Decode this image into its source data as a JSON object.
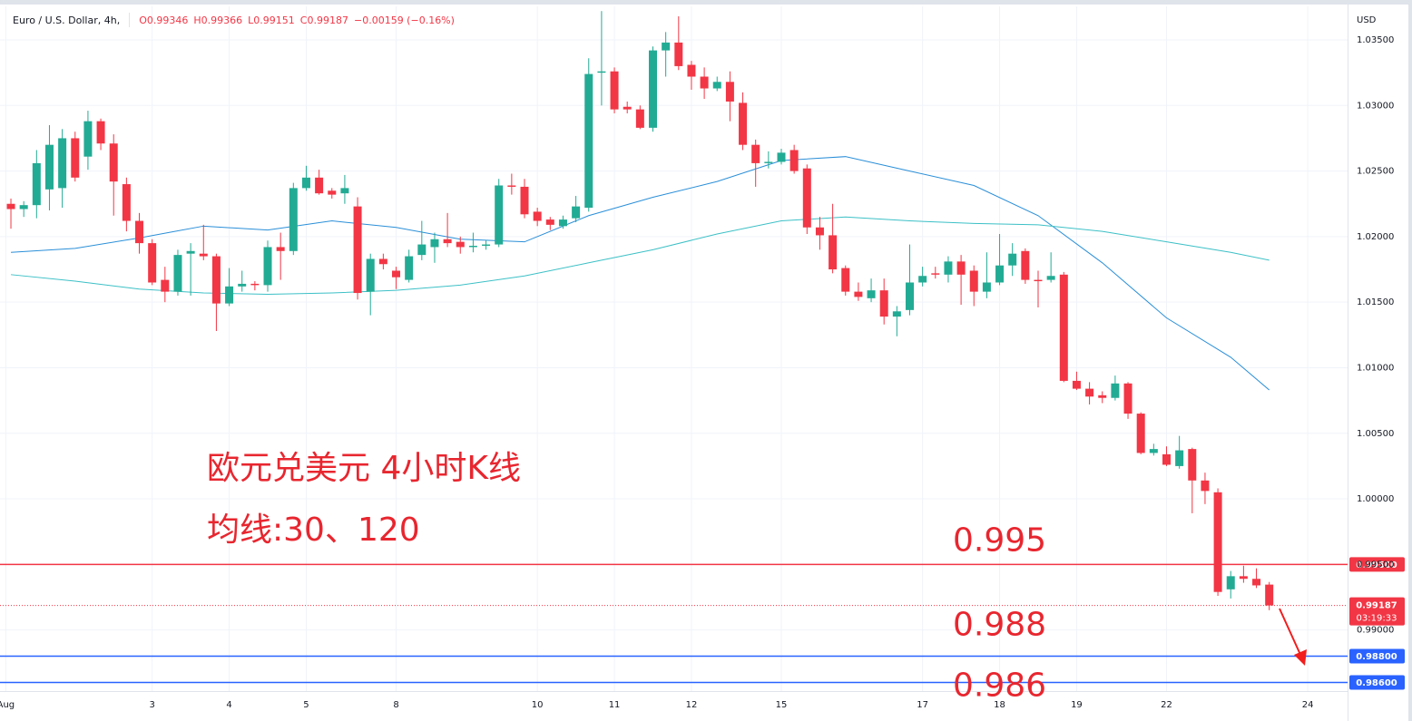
{
  "chart_data": {
    "type": "candlestick",
    "title": "Euro / U.S. Dollar, 4h,",
    "header_values": [
      {
        "key": "O",
        "value": "0.99346"
      },
      {
        "key": "H",
        "value": "0.99366"
      },
      {
        "key": "L",
        "value": "0.99151"
      },
      {
        "key": "C",
        "value": "0.99187"
      }
    ],
    "change": "−0.00159 (−0.16%)",
    "currency": "USD",
    "notes": [
      "欧元兑美元 4小时K线",
      "均线:30、120"
    ],
    "xlim": [
      -0.85,
      104.1
    ],
    "xticks": [
      {
        "value": -0.4,
        "label": "Aug"
      },
      {
        "value": 11,
        "label": "3"
      },
      {
        "value": 17,
        "label": "4"
      },
      {
        "value": 23,
        "label": "5"
      },
      {
        "value": 30,
        "label": "8"
      },
      {
        "value": 41,
        "label": "10"
      },
      {
        "value": 47,
        "label": "11"
      },
      {
        "value": 53,
        "label": "12"
      },
      {
        "value": 60,
        "label": "15"
      },
      {
        "value": 71,
        "label": "17"
      },
      {
        "value": 77,
        "label": "18"
      },
      {
        "value": 83,
        "label": "19"
      },
      {
        "value": 90,
        "label": "22"
      },
      {
        "value": 101,
        "label": "24"
      }
    ],
    "ylim": [
      0.98534,
      1.03756
    ],
    "yticks": [
      {
        "value": 0.99,
        "label": "0.99000"
      },
      {
        "value": 0.995,
        "label": "0.99500"
      },
      {
        "value": 1.0,
        "label": "1.00000"
      },
      {
        "value": 1.005,
        "label": "1.00500"
      },
      {
        "value": 1.01,
        "label": "1.01000"
      },
      {
        "value": 1.015,
        "label": "1.01500"
      },
      {
        "value": 1.02,
        "label": "1.02000"
      },
      {
        "value": 1.025,
        "label": "1.02500"
      },
      {
        "value": 1.03,
        "label": "1.03000"
      },
      {
        "value": 1.035,
        "label": "1.03500"
      }
    ],
    "grid": true,
    "up_color": "#22ab94",
    "down_color": "#f23645",
    "candles": {
      "open": [
        1.0225,
        1.0221,
        1.0224,
        1.0236,
        1.0237,
        1.0275,
        1.0261,
        1.0288,
        1.0271,
        1.024,
        1.0212,
        1.0195,
        1.0167,
        1.0158,
        1.0187,
        1.0187,
        1.0185,
        1.0149,
        1.0162,
        1.0164,
        1.0163,
        1.0192,
        1.0189,
        1.0237,
        1.0245,
        1.0235,
        1.0233,
        1.0223,
        1.0158,
        1.0183,
        1.0174,
        1.0167,
        1.0186,
        1.0192,
        1.0198,
        1.0196,
        1.0192,
        1.0193,
        1.0194,
        1.0239,
        1.0238,
        1.0219,
        1.0213,
        1.0208,
        1.0214,
        1.0222,
        1.0325,
        1.0326,
        1.0299,
        1.0297,
        1.0283,
        1.0342,
        1.0348,
        1.0331,
        1.0322,
        1.0313,
        1.0318,
        1.0302,
        1.027,
        1.0256,
        1.0257,
        1.0266,
        1.0252,
        1.0207,
        1.0201,
        1.0176,
        1.0158,
        1.0153,
        1.0159,
        1.0139,
        1.0144,
        1.0165,
        1.0172,
        1.0171,
        1.0181,
        1.0174,
        1.0158,
        1.0165,
        1.0178,
        1.0189,
        1.0167,
        1.0167,
        1.0171,
        1.009,
        1.0084,
        1.0079,
        1.0077,
        1.0088,
        1.0065,
        1.0035,
        1.0034,
        1.0025,
        1.0038,
        1.0014,
        1.0005,
        0.9931,
        0.9941,
        0.9939,
        0.99346
      ],
      "high": [
        1.0229,
        1.0227,
        1.0266,
        1.0285,
        1.0282,
        1.028,
        1.0296,
        1.029,
        1.0278,
        1.0245,
        1.0218,
        1.0198,
        1.0177,
        1.019,
        1.0195,
        1.0209,
        1.0187,
        1.0176,
        1.0174,
        1.0166,
        1.0197,
        1.0203,
        1.0241,
        1.0254,
        1.0251,
        1.0237,
        1.0247,
        1.023,
        1.0187,
        1.0187,
        1.0177,
        1.019,
        1.0212,
        1.0203,
        1.0218,
        1.02,
        1.0203,
        1.0197,
        1.0244,
        1.0248,
        1.0244,
        1.0222,
        1.0215,
        1.0216,
        1.0231,
        1.0336,
        1.0372,
        1.0329,
        1.0303,
        1.03,
        1.0345,
        1.0356,
        1.0368,
        1.0334,
        1.0329,
        1.0322,
        1.0326,
        1.031,
        1.0274,
        1.0265,
        1.0267,
        1.027,
        1.0255,
        1.0215,
        1.0225,
        1.0178,
        1.0165,
        1.0168,
        1.0168,
        1.0147,
        1.0194,
        1.0177,
        1.0177,
        1.0185,
        1.0186,
        1.0178,
        1.0188,
        1.0202,
        1.0195,
        1.0191,
        1.0174,
        1.0188,
        1.0173,
        1.0097,
        1.0089,
        1.0082,
        1.0094,
        1.0089,
        1.0066,
        1.0042,
        1.004,
        1.0048,
        1.0039,
        1.002,
        1.0008,
        0.9945,
        0.9949,
        0.9947,
        0.99366
      ],
      "low": [
        1.0206,
        1.0215,
        1.0214,
        1.022,
        1.0222,
        1.0242,
        1.0251,
        1.0266,
        1.0216,
        1.0204,
        1.0187,
        1.0163,
        1.015,
        1.0155,
        1.0155,
        1.0182,
        1.0128,
        1.0147,
        1.0158,
        1.0159,
        1.0158,
        1.0167,
        1.0186,
        1.0235,
        1.0232,
        1.0229,
        1.0225,
        1.0152,
        1.014,
        1.0175,
        1.016,
        1.0165,
        1.0182,
        1.018,
        1.0192,
        1.0187,
        1.0188,
        1.019,
        1.0192,
        1.0232,
        1.0214,
        1.0208,
        1.0205,
        1.0206,
        1.0211,
        1.0219,
        1.03,
        1.0294,
        1.0294,
        1.0282,
        1.028,
        1.0322,
        1.0327,
        1.0312,
        1.0305,
        1.0311,
        1.0288,
        1.0266,
        1.0238,
        1.0252,
        1.0255,
        1.0248,
        1.0202,
        1.019,
        1.0172,
        1.0155,
        1.0151,
        1.015,
        1.0133,
        1.0124,
        1.014,
        1.0162,
        1.0168,
        1.0165,
        1.0148,
        1.0147,
        1.0153,
        1.0163,
        1.017,
        1.0164,
        1.0146,
        1.0165,
        1.0089,
        1.0083,
        1.0072,
        1.0073,
        1.0075,
        1.0061,
        1.0034,
        1.0033,
        1.0025,
        1.0023,
        0.9989,
        0.9996,
        0.9926,
        0.9924,
        0.9936,
        0.9932,
        0.99151
      ],
      "close": [
        1.0221,
        1.0224,
        1.0256,
        1.027,
        1.0275,
        1.0245,
        1.0288,
        1.0271,
        1.0242,
        1.0212,
        1.0195,
        1.0165,
        1.0158,
        1.0186,
        1.0189,
        1.0185,
        1.0149,
        1.0162,
        1.0164,
        1.0163,
        1.0192,
        1.0189,
        1.0237,
        1.0245,
        1.0233,
        1.0232,
        1.0237,
        1.0157,
        1.0183,
        1.0179,
        1.0169,
        1.0185,
        1.0194,
        1.0198,
        1.0195,
        1.0192,
        1.0193,
        1.0194,
        1.0239,
        1.0238,
        1.0217,
        1.0212,
        1.0209,
        1.0213,
        1.0223,
        1.0324,
        1.0326,
        1.0297,
        1.0297,
        1.0283,
        1.0342,
        1.0348,
        1.033,
        1.0322,
        1.0313,
        1.0318,
        1.0303,
        1.027,
        1.0256,
        1.0257,
        1.0264,
        1.025,
        1.0207,
        1.0201,
        1.0175,
        1.0158,
        1.0154,
        1.0159,
        1.0139,
        1.0143,
        1.0165,
        1.017,
        1.0171,
        1.0181,
        1.0171,
        1.0158,
        1.0165,
        1.0178,
        1.0187,
        1.0167,
        1.0166,
        1.017,
        1.009,
        1.0084,
        1.0078,
        1.0077,
        1.0088,
        1.0065,
        1.0035,
        1.0038,
        1.0026,
        1.0037,
        1.0014,
        1.0006,
        0.9929,
        0.9941,
        0.9939,
        0.9934,
        0.99187
      ]
    },
    "lines": [
      {
        "color": "#2a8fd8",
        "x": [
          0,
          5,
          10,
          15,
          20,
          25,
          30,
          35,
          40,
          45,
          50,
          55,
          60,
          65,
          70,
          75,
          80,
          85,
          90,
          95,
          98
        ],
        "values": [
          1.0188,
          1.0191,
          1.0199,
          1.0208,
          1.0205,
          1.0212,
          1.0207,
          1.0198,
          1.0196,
          1.0216,
          1.023,
          1.0242,
          1.0258,
          1.0261,
          1.025,
          1.0239,
          1.0216,
          1.018,
          1.0138,
          1.0108,
          1.0083
        ]
      },
      {
        "color": "#3cc0c6",
        "x": [
          0,
          5,
          10,
          15,
          20,
          25,
          30,
          35,
          40,
          45,
          50,
          55,
          60,
          65,
          70,
          75,
          80,
          85,
          90,
          95,
          98
        ],
        "values": [
          1.0171,
          1.0166,
          1.016,
          1.0157,
          1.0156,
          1.0157,
          1.0159,
          1.0163,
          1.017,
          1.018,
          1.019,
          1.0202,
          1.0212,
          1.0215,
          1.0212,
          1.021,
          1.0209,
          1.0204,
          1.0196,
          1.0188,
          1.0182
        ]
      }
    ],
    "levels": [
      {
        "value": 0.995,
        "label": "0.99500",
        "annotation": "0.995",
        "color": "#f23645"
      },
      {
        "value": 0.988,
        "label": "0.98800",
        "annotation": "0.988",
        "color": "#2962ff"
      },
      {
        "value": 0.986,
        "label": "0.98600",
        "annotation": "0.986",
        "color": "#2962ff"
      }
    ],
    "last_price": {
      "value": 0.99187,
      "label": "0.99187",
      "countdown": "03:19:33",
      "color": "#f23645"
    }
  }
}
